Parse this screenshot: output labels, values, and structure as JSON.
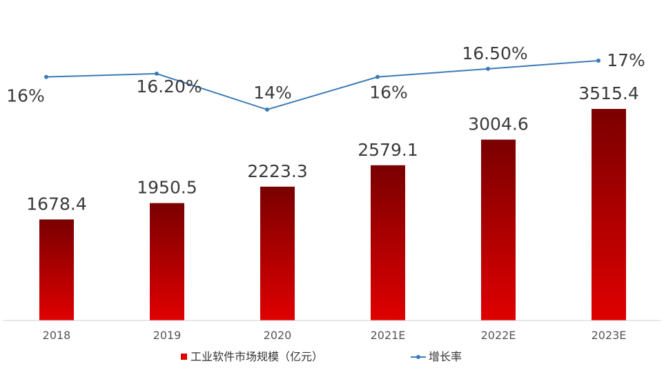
{
  "chart_data": {
    "type": "bar",
    "title": "",
    "categories": [
      "2018",
      "2019",
      "2020",
      "2021E",
      "2022E",
      "2023E"
    ],
    "series": [
      {
        "name": "工业软件市场规模（亿元）",
        "type": "bar",
        "axis": "left",
        "values": [
          1678.4,
          1950.5,
          2223.3,
          2579.1,
          3004.6,
          3515.4
        ],
        "labels": [
          "1678.4",
          "1950.5",
          "2223.3",
          "2579.1",
          "3004.6",
          "3515.4"
        ],
        "color_top": "#7a0000",
        "color_bottom": "#e00000"
      },
      {
        "name": "增长率",
        "type": "line",
        "axis": "right",
        "values": [
          16,
          16.2,
          14,
          16,
          16.5,
          17
        ],
        "labels": [
          "16%",
          "16.20%",
          "14%",
          "16%",
          "16.50%",
          "17%"
        ],
        "color": "#3a7ab8"
      }
    ],
    "y_left_range": [
      0,
      3515.4
    ],
    "y_right_range": [
      14,
      17
    ],
    "grid": false,
    "legend_position": "bottom"
  }
}
